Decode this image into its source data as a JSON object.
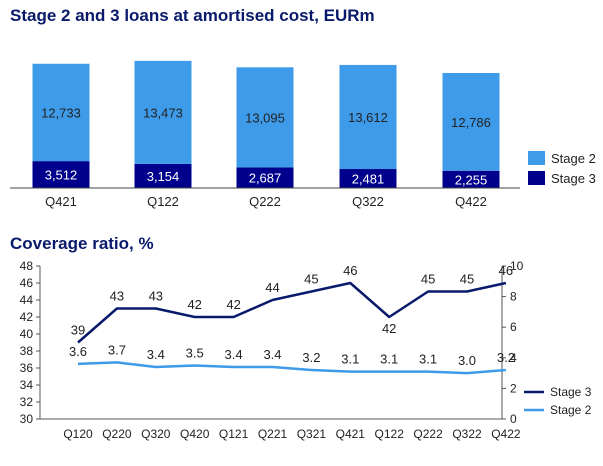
{
  "chart_data": [
    {
      "type": "bar",
      "stacked": true,
      "title": "Stage 2 and 3 loans at amortised cost, EURm",
      "categories": [
        "Q421",
        "Q122",
        "Q222",
        "Q322",
        "Q422"
      ],
      "series": [
        {
          "name": "Stage 2",
          "values": [
            12733,
            13473,
            13095,
            13612,
            12786
          ],
          "labels": [
            "12,733",
            "13,473",
            "13,095",
            "13,612",
            "12,786"
          ],
          "color": "#3d9be9"
        },
        {
          "name": "Stage 3",
          "values": [
            3512,
            3154,
            2687,
            2481,
            2255
          ],
          "labels": [
            "3,512",
            "3,154",
            "2,687",
            "2,481",
            "2,255"
          ],
          "color": "#00008c"
        }
      ],
      "legend": "right",
      "grid": false
    },
    {
      "type": "line",
      "title": "Coverage ratio, %",
      "categories": [
        "Q120",
        "Q220",
        "Q320",
        "Q420",
        "Q121",
        "Q221",
        "Q321",
        "Q421",
        "Q122",
        "Q222",
        "Q322",
        "Q422"
      ],
      "series": [
        {
          "name": "Stage 3",
          "axis": "left",
          "values": [
            39,
            43,
            43,
            42,
            42,
            44,
            45,
            46,
            42,
            45,
            45,
            46
          ],
          "color": "#0a1a6b"
        },
        {
          "name": "Stage 2",
          "axis": "right",
          "values": [
            3.6,
            3.7,
            3.4,
            3.5,
            3.4,
            3.4,
            3.2,
            3.1,
            3.1,
            3.1,
            3.0,
            3.2
          ],
          "labels": [
            "3.6",
            "3.7",
            "3.4",
            "3.5",
            "3.4",
            "3.4",
            "3.2",
            "3.1",
            "3.1",
            "3.1",
            "3.0",
            "3.2"
          ],
          "color": "#3d9be9"
        }
      ],
      "ylim_left": [
        30,
        48
      ],
      "yticks_left": [
        30,
        32,
        34,
        36,
        38,
        40,
        42,
        44,
        46,
        48
      ],
      "ylim_right": [
        0,
        10
      ],
      "yticks_right": [
        0,
        2,
        4,
        6,
        8,
        10
      ],
      "legend": "bottom-right",
      "grid": false
    }
  ]
}
